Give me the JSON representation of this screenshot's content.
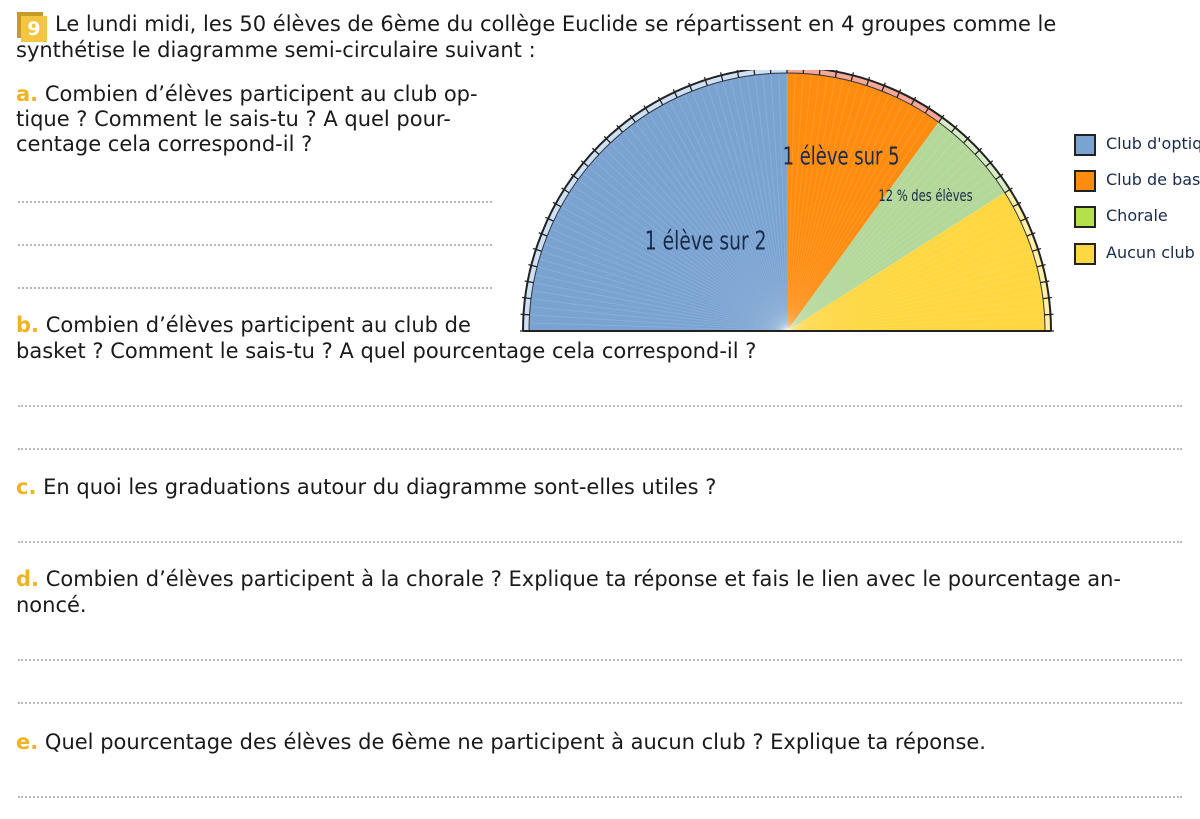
{
  "exercise": {
    "number": "9",
    "intro_line1": "Le lundi midi, les 50 élèves de 6ème du collège Euclide se répartissent en 4 groupes comme le",
    "intro_line2": "synthétise le diagramme semi-circulaire suivant :"
  },
  "questions": {
    "a_letter": "a.",
    "a_line1": "Combien d’élèves participent au club op-",
    "a_line2": "tique ? Comment le sais-tu ? A quel pour-",
    "a_line3": "centage cela correspond-il ?",
    "b_letter": "b.",
    "b_line1": "Combien d’élèves participent au club de",
    "b_line2": "basket ? Comment le sais-tu ? A quel pourcentage cela correspond-il ?",
    "c_letter": "c.",
    "c_line1": "En quoi les graduations autour du diagramme sont-elles utiles ?",
    "d_letter": "d.",
    "d_line1": "Combien d’élèves participent à la chorale ? Explique ta réponse et fais le lien avec le pourcentage an-",
    "d_line2": "noncé.",
    "e_letter": "e.",
    "e_line1": "Quel pourcentage des élèves de 6ème ne participent à aucun club ? Explique ta réponse."
  },
  "chart_data": {
    "type": "pie",
    "shape": "semi-circle",
    "total": 50,
    "graduations": 50,
    "categories": [
      "Club d'optique",
      "Club de basket",
      "Chorale",
      "Aucun club"
    ],
    "values": [
      25,
      10,
      6,
      9
    ],
    "colors": [
      "#7aa3d2",
      "#ff8c0f",
      "#b3d89a",
      "#ffd740"
    ],
    "tick_colors": [
      "#cde0f5",
      "#f7a898",
      "#d6edc7",
      "#fff1a8"
    ],
    "legend_colors": [
      "#7aa3d2",
      "#ff8c0f",
      "#b4e04a",
      "#ffd740"
    ],
    "slice_labels": [
      "1 élève sur 2",
      "1 élève sur 5",
      "12 % des élèves",
      ""
    ],
    "legend": [
      "Club d'optique",
      "Club de basket",
      "Chorale",
      "Aucun club"
    ],
    "legend_position": "right"
  }
}
